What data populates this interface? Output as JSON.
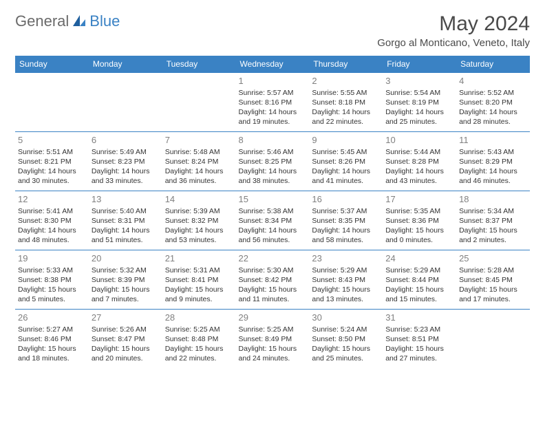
{
  "brand": {
    "part1": "General",
    "part2": "Blue"
  },
  "title": "May 2024",
  "location": "Gorgo al Monticano, Veneto, Italy",
  "colors": {
    "header_bg": "#3a82c4",
    "header_text": "#ffffff",
    "border": "#3a82c4",
    "daynum": "#808080",
    "body_text": "#333333",
    "brand_gray": "#6a6a6a",
    "brand_blue": "#3a82c4"
  },
  "weekdays": [
    "Sunday",
    "Monday",
    "Tuesday",
    "Wednesday",
    "Thursday",
    "Friday",
    "Saturday"
  ],
  "weeks": [
    [
      null,
      null,
      null,
      {
        "n": "1",
        "sr": "Sunrise: 5:57 AM",
        "ss": "Sunset: 8:16 PM",
        "dl": "Daylight: 14 hours and 19 minutes."
      },
      {
        "n": "2",
        "sr": "Sunrise: 5:55 AM",
        "ss": "Sunset: 8:18 PM",
        "dl": "Daylight: 14 hours and 22 minutes."
      },
      {
        "n": "3",
        "sr": "Sunrise: 5:54 AM",
        "ss": "Sunset: 8:19 PM",
        "dl": "Daylight: 14 hours and 25 minutes."
      },
      {
        "n": "4",
        "sr": "Sunrise: 5:52 AM",
        "ss": "Sunset: 8:20 PM",
        "dl": "Daylight: 14 hours and 28 minutes."
      }
    ],
    [
      {
        "n": "5",
        "sr": "Sunrise: 5:51 AM",
        "ss": "Sunset: 8:21 PM",
        "dl": "Daylight: 14 hours and 30 minutes."
      },
      {
        "n": "6",
        "sr": "Sunrise: 5:49 AM",
        "ss": "Sunset: 8:23 PM",
        "dl": "Daylight: 14 hours and 33 minutes."
      },
      {
        "n": "7",
        "sr": "Sunrise: 5:48 AM",
        "ss": "Sunset: 8:24 PM",
        "dl": "Daylight: 14 hours and 36 minutes."
      },
      {
        "n": "8",
        "sr": "Sunrise: 5:46 AM",
        "ss": "Sunset: 8:25 PM",
        "dl": "Daylight: 14 hours and 38 minutes."
      },
      {
        "n": "9",
        "sr": "Sunrise: 5:45 AM",
        "ss": "Sunset: 8:26 PM",
        "dl": "Daylight: 14 hours and 41 minutes."
      },
      {
        "n": "10",
        "sr": "Sunrise: 5:44 AM",
        "ss": "Sunset: 8:28 PM",
        "dl": "Daylight: 14 hours and 43 minutes."
      },
      {
        "n": "11",
        "sr": "Sunrise: 5:43 AM",
        "ss": "Sunset: 8:29 PM",
        "dl": "Daylight: 14 hours and 46 minutes."
      }
    ],
    [
      {
        "n": "12",
        "sr": "Sunrise: 5:41 AM",
        "ss": "Sunset: 8:30 PM",
        "dl": "Daylight: 14 hours and 48 minutes."
      },
      {
        "n": "13",
        "sr": "Sunrise: 5:40 AM",
        "ss": "Sunset: 8:31 PM",
        "dl": "Daylight: 14 hours and 51 minutes."
      },
      {
        "n": "14",
        "sr": "Sunrise: 5:39 AM",
        "ss": "Sunset: 8:32 PM",
        "dl": "Daylight: 14 hours and 53 minutes."
      },
      {
        "n": "15",
        "sr": "Sunrise: 5:38 AM",
        "ss": "Sunset: 8:34 PM",
        "dl": "Daylight: 14 hours and 56 minutes."
      },
      {
        "n": "16",
        "sr": "Sunrise: 5:37 AM",
        "ss": "Sunset: 8:35 PM",
        "dl": "Daylight: 14 hours and 58 minutes."
      },
      {
        "n": "17",
        "sr": "Sunrise: 5:35 AM",
        "ss": "Sunset: 8:36 PM",
        "dl": "Daylight: 15 hours and 0 minutes."
      },
      {
        "n": "18",
        "sr": "Sunrise: 5:34 AM",
        "ss": "Sunset: 8:37 PM",
        "dl": "Daylight: 15 hours and 2 minutes."
      }
    ],
    [
      {
        "n": "19",
        "sr": "Sunrise: 5:33 AM",
        "ss": "Sunset: 8:38 PM",
        "dl": "Daylight: 15 hours and 5 minutes."
      },
      {
        "n": "20",
        "sr": "Sunrise: 5:32 AM",
        "ss": "Sunset: 8:39 PM",
        "dl": "Daylight: 15 hours and 7 minutes."
      },
      {
        "n": "21",
        "sr": "Sunrise: 5:31 AM",
        "ss": "Sunset: 8:41 PM",
        "dl": "Daylight: 15 hours and 9 minutes."
      },
      {
        "n": "22",
        "sr": "Sunrise: 5:30 AM",
        "ss": "Sunset: 8:42 PM",
        "dl": "Daylight: 15 hours and 11 minutes."
      },
      {
        "n": "23",
        "sr": "Sunrise: 5:29 AM",
        "ss": "Sunset: 8:43 PM",
        "dl": "Daylight: 15 hours and 13 minutes."
      },
      {
        "n": "24",
        "sr": "Sunrise: 5:29 AM",
        "ss": "Sunset: 8:44 PM",
        "dl": "Daylight: 15 hours and 15 minutes."
      },
      {
        "n": "25",
        "sr": "Sunrise: 5:28 AM",
        "ss": "Sunset: 8:45 PM",
        "dl": "Daylight: 15 hours and 17 minutes."
      }
    ],
    [
      {
        "n": "26",
        "sr": "Sunrise: 5:27 AM",
        "ss": "Sunset: 8:46 PM",
        "dl": "Daylight: 15 hours and 18 minutes."
      },
      {
        "n": "27",
        "sr": "Sunrise: 5:26 AM",
        "ss": "Sunset: 8:47 PM",
        "dl": "Daylight: 15 hours and 20 minutes."
      },
      {
        "n": "28",
        "sr": "Sunrise: 5:25 AM",
        "ss": "Sunset: 8:48 PM",
        "dl": "Daylight: 15 hours and 22 minutes."
      },
      {
        "n": "29",
        "sr": "Sunrise: 5:25 AM",
        "ss": "Sunset: 8:49 PM",
        "dl": "Daylight: 15 hours and 24 minutes."
      },
      {
        "n": "30",
        "sr": "Sunrise: 5:24 AM",
        "ss": "Sunset: 8:50 PM",
        "dl": "Daylight: 15 hours and 25 minutes."
      },
      {
        "n": "31",
        "sr": "Sunrise: 5:23 AM",
        "ss": "Sunset: 8:51 PM",
        "dl": "Daylight: 15 hours and 27 minutes."
      },
      null
    ]
  ]
}
